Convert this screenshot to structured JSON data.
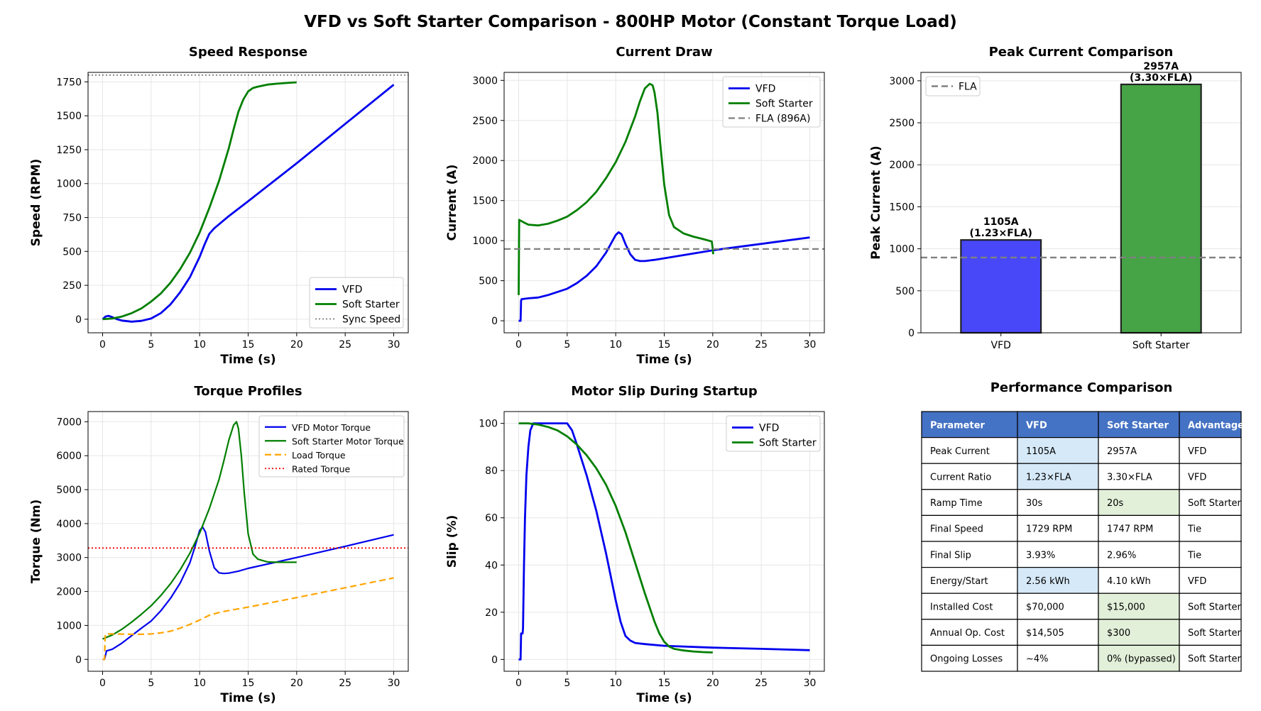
{
  "title": "VFD vs Soft Starter Comparison - 800HP Motor (Constant Torque Load)",
  "colors": {
    "vfd": "#0000ee",
    "soft": "#007f00",
    "ref": "#808080",
    "load": "#ffa500",
    "rated": "#ee0000",
    "table_head": "#4472c4",
    "vfd_cell": "#d6e9f8",
    "soft_cell": "#e2efd9"
  },
  "chart_data": [
    {
      "type": "line",
      "title": "Speed Response",
      "xlabel": "Time (s)",
      "ylabel": "Speed (RPM)",
      "xlim": [
        -1.5,
        31.5
      ],
      "ylim": [
        -100,
        1820
      ],
      "xticks": [
        0,
        5,
        10,
        15,
        20,
        25,
        30
      ],
      "yticks": [
        0,
        250,
        500,
        750,
        1000,
        1250,
        1500,
        1750
      ],
      "legend": "lower-right",
      "series": [
        {
          "name": "VFD",
          "color": "#0000ee",
          "width": 2.8,
          "dash": "",
          "x": [
            0,
            0.3,
            0.6,
            1,
            1.5,
            2,
            3,
            4,
            5,
            6,
            7,
            8,
            9,
            10,
            10.5,
            11,
            11.5,
            12,
            13,
            15,
            20,
            25,
            30
          ],
          "y": [
            0,
            20,
            25,
            15,
            0,
            -10,
            -18,
            -12,
            5,
            45,
            110,
            200,
            310,
            460,
            550,
            630,
            670,
            700,
            760,
            870,
            1150,
            1440,
            1729
          ]
        },
        {
          "name": "Soft Starter",
          "color": "#007f00",
          "width": 2.8,
          "dash": "",
          "x": [
            0,
            1,
            2,
            3,
            4,
            5,
            6,
            7,
            8,
            9,
            10,
            11,
            12,
            13,
            13.5,
            14,
            14.5,
            15,
            15.5,
            16,
            17,
            18,
            19,
            20
          ],
          "y": [
            0,
            5,
            20,
            45,
            80,
            130,
            190,
            270,
            370,
            490,
            640,
            820,
            1020,
            1260,
            1400,
            1530,
            1620,
            1680,
            1705,
            1715,
            1730,
            1737,
            1742,
            1747
          ]
        },
        {
          "name": "Sync Speed",
          "color": "#555555",
          "width": 1.3,
          "dash": "2,3",
          "x": [
            -1.5,
            31.5
          ],
          "y": [
            1800,
            1800
          ]
        }
      ]
    },
    {
      "type": "line",
      "title": "Current Draw",
      "xlabel": "Time (s)",
      "ylabel": "Current (A)",
      "xlim": [
        -1.5,
        31.5
      ],
      "ylim": [
        -150,
        3100
      ],
      "xticks": [
        0,
        5,
        10,
        15,
        20,
        25,
        30
      ],
      "yticks": [
        0,
        500,
        1000,
        1500,
        2000,
        2500,
        3000
      ],
      "legend": "top-right",
      "series": [
        {
          "name": "VFD",
          "color": "#0000ee",
          "width": 2.8,
          "dash": "",
          "x": [
            0,
            0.2,
            0.25,
            0.3,
            1,
            2,
            3,
            4,
            5,
            6,
            7,
            8,
            9,
            9.5,
            10,
            10.3,
            10.6,
            11,
            11.5,
            12,
            12.5,
            13,
            14,
            15,
            20,
            25,
            30
          ],
          "y": [
            0,
            0,
            250,
            270,
            280,
            290,
            320,
            360,
            400,
            470,
            560,
            680,
            850,
            960,
            1070,
            1105,
            1080,
            960,
            830,
            760,
            745,
            745,
            760,
            780,
            880,
            960,
            1040
          ]
        },
        {
          "name": "Soft Starter",
          "color": "#007f00",
          "width": 2.8,
          "dash": "",
          "x": [
            0,
            0.05,
            0.5,
            1,
            2,
            3,
            4,
            5,
            6,
            7,
            8,
            9,
            10,
            11,
            12,
            12.5,
            13,
            13.5,
            13.8,
            14,
            14.3,
            14.6,
            15,
            15.5,
            16,
            17,
            18,
            19,
            19.9,
            20,
            20.05
          ],
          "y": [
            320,
            1260,
            1230,
            1200,
            1190,
            1210,
            1250,
            1300,
            1380,
            1480,
            1610,
            1780,
            1980,
            2230,
            2550,
            2740,
            2900,
            2957,
            2940,
            2850,
            2600,
            2200,
            1700,
            1320,
            1170,
            1090,
            1050,
            1020,
            990,
            900,
            830
          ]
        },
        {
          "name": "FLA (896A)",
          "color": "#808080",
          "width": 2.2,
          "dash": "9,5",
          "x": [
            -1.5,
            31.5
          ],
          "y": [
            896,
            896
          ]
        }
      ]
    },
    {
      "type": "bar",
      "title": "Peak Current Comparison",
      "ylabel": "Peak Current (A)",
      "ylim": [
        0,
        3100
      ],
      "yticks": [
        0,
        500,
        1000,
        1500,
        2000,
        2500,
        3000
      ],
      "categories": [
        "VFD",
        "Soft Starter"
      ],
      "values": [
        1105,
        2957
      ],
      "colors": [
        "#4848f8",
        "#46a346"
      ],
      "value_labels": [
        "1105A",
        "2957A"
      ],
      "ratio_labels": [
        "(1.23×FLA)",
        "(3.30×FLA)"
      ],
      "reference": {
        "name": "FLA",
        "value": 896,
        "color": "#808080"
      },
      "legend": "top-left"
    },
    {
      "type": "line",
      "title": "Torque Profiles",
      "xlabel": "Time (s)",
      "ylabel": "Torque (Nm)",
      "xlim": [
        -1.5,
        31.5
      ],
      "ylim": [
        -350,
        7300
      ],
      "xticks": [
        0,
        5,
        10,
        15,
        20,
        25,
        30
      ],
      "yticks": [
        0,
        1000,
        2000,
        3000,
        4000,
        5000,
        6000,
        7000
      ],
      "legend": "top-right",
      "series": [
        {
          "name": "VFD Motor Torque",
          "color": "#0000ee",
          "width": 2.2,
          "dash": "",
          "x": [
            0,
            0.2,
            0.4,
            1,
            2,
            3,
            4,
            5,
            6,
            7,
            8,
            9,
            9.5,
            10,
            10.3,
            10.6,
            11,
            11.5,
            12,
            12.5,
            13,
            14,
            15,
            20,
            25,
            30
          ],
          "y": [
            0,
            0,
            250,
            300,
            480,
            700,
            920,
            1130,
            1430,
            1800,
            2250,
            2850,
            3300,
            3800,
            3900,
            3750,
            3200,
            2700,
            2550,
            2530,
            2540,
            2600,
            2680,
            3000,
            3330,
            3670
          ]
        },
        {
          "name": "Soft Starter Motor Torque",
          "color": "#007f00",
          "width": 2.2,
          "dash": "",
          "x": [
            0,
            1,
            2,
            3,
            4,
            5,
            6,
            7,
            8,
            9,
            10,
            11,
            12,
            12.5,
            13,
            13.5,
            13.8,
            14,
            14.3,
            14.6,
            15,
            15.5,
            16,
            17,
            18,
            19,
            20
          ],
          "y": [
            600,
            720,
            890,
            1100,
            1330,
            1580,
            1880,
            2230,
            2640,
            3130,
            3720,
            4440,
            5300,
            5850,
            6450,
            6900,
            7000,
            6800,
            6000,
            4900,
            3700,
            3100,
            2950,
            2870,
            2860,
            2860,
            2860
          ]
        },
        {
          "name": "Load Torque",
          "color": "#ffa500",
          "width": 2.2,
          "dash": "9,5",
          "x": [
            0,
            0.2,
            0.25,
            0.3,
            1,
            2,
            3,
            4,
            5,
            6,
            7,
            8,
            9,
            10,
            11,
            12,
            13,
            15,
            20,
            25,
            30
          ],
          "y": [
            0,
            0,
            600,
            750,
            750,
            745,
            740,
            740,
            750,
            780,
            830,
            920,
            1030,
            1160,
            1300,
            1380,
            1440,
            1540,
            1820,
            2110,
            2400
          ]
        },
        {
          "name": "Rated Torque",
          "color": "#ee0000",
          "width": 1.8,
          "dash": "2,3",
          "x": [
            -1.5,
            31.5
          ],
          "y": [
            3280,
            3280
          ]
        }
      ]
    },
    {
      "type": "line",
      "title": "Motor Slip During Startup",
      "xlabel": "Time (s)",
      "ylabel": "Slip (%)",
      "xlim": [
        -1.5,
        31.5
      ],
      "ylim": [
        -5,
        105
      ],
      "xticks": [
        0,
        5,
        10,
        15,
        20,
        25,
        30
      ],
      "yticks": [
        0,
        20,
        40,
        60,
        80,
        100
      ],
      "legend": "top-right",
      "series": [
        {
          "name": "VFD",
          "color": "#0000ee",
          "width": 2.8,
          "dash": "",
          "x": [
            0,
            0.2,
            0.25,
            0.4,
            0.45,
            0.55,
            0.65,
            0.8,
            1,
            1.2,
            1.5,
            2,
            3,
            4,
            5,
            5.5,
            6,
            7,
            8,
            9,
            10,
            10.5,
            11,
            11.5,
            12,
            13,
            15,
            20,
            25,
            30
          ],
          "y": [
            0,
            0,
            11,
            11,
            13,
            40,
            60,
            78,
            90,
            97,
            100,
            100,
            100,
            100,
            100,
            97,
            91,
            78,
            63,
            45,
            25,
            16,
            10,
            8,
            7,
            6.5,
            5.8,
            5,
            4.5,
            3.93
          ]
        },
        {
          "name": "Soft Starter",
          "color": "#007f00",
          "width": 2.8,
          "dash": "",
          "x": [
            0,
            1,
            2,
            3,
            4,
            5,
            6,
            7,
            8,
            9,
            10,
            11,
            12,
            13,
            14,
            14.5,
            15,
            15.5,
            16,
            17,
            18,
            19,
            20
          ],
          "y": [
            100,
            100,
            99.5,
            98.5,
            97,
            94.5,
            91,
            86.5,
            81,
            74,
            65,
            54,
            41,
            28,
            16,
            11,
            7.5,
            5.5,
            4.5,
            3.8,
            3.4,
            3.1,
            2.96
          ]
        }
      ]
    }
  ],
  "table": {
    "title": "Performance Comparison",
    "headers": [
      "Parameter",
      "VFD",
      "Soft Starter",
      "Advantage"
    ],
    "rows": [
      [
        "Peak Current",
        "1105A",
        "2957A",
        "VFD"
      ],
      [
        "Current Ratio",
        "1.23×FLA",
        "3.30×FLA",
        "VFD"
      ],
      [
        "Ramp Time",
        "30s",
        "20s",
        "Soft Starter"
      ],
      [
        "Final Speed",
        "1729 RPM",
        "1747 RPM",
        "Tie"
      ],
      [
        "Final Slip",
        "3.93%",
        "2.96%",
        "Tie"
      ],
      [
        "Energy/Start",
        "2.56 kWh",
        "4.10 kWh",
        "VFD"
      ],
      [
        "Installed Cost",
        "$70,000",
        "$15,000",
        "Soft Starter"
      ],
      [
        "Annual Op. Cost",
        "$14,505",
        "$300",
        "Soft Starter"
      ],
      [
        "Ongoing Losses",
        "~4%",
        "0% (bypassed)",
        "Soft Starter"
      ]
    ]
  }
}
